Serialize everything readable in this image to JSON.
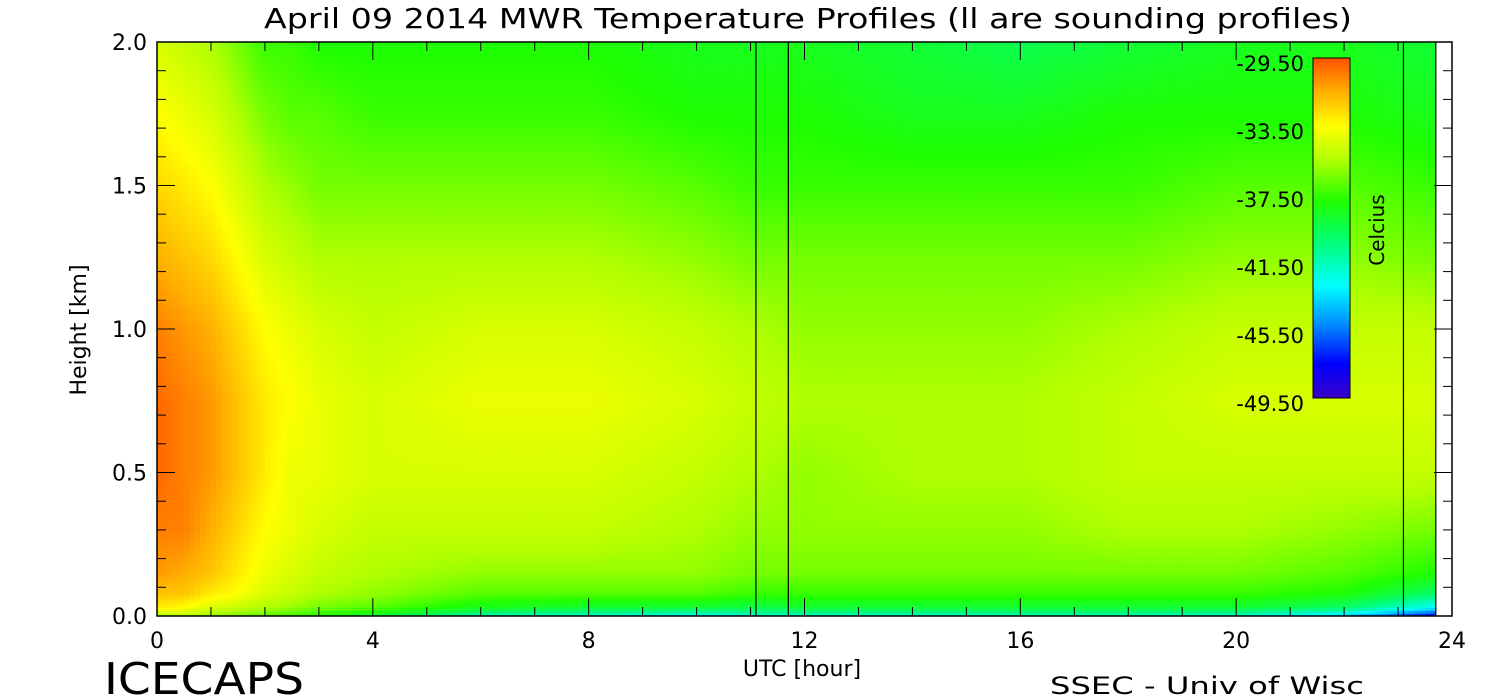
{
  "chart_data": {
    "type": "heatmap",
    "title": "April 09 2014 MWR Temperature Profiles (ll are sounding profiles)",
    "xlabel": "UTC [hour]",
    "ylabel": "Height [km]",
    "xlim": [
      0,
      24
    ],
    "ylim": [
      0,
      2.0
    ],
    "x_ticks": [
      "0",
      "4",
      "8",
      "12",
      "16",
      "20",
      "24"
    ],
    "y_ticks": [
      "0.0",
      "0.5",
      "1.0",
      "1.5",
      "2.0"
    ],
    "sounding_profiles_utc": [
      11.1,
      11.7,
      23.1
    ],
    "missing_data_from_utc": 23.7,
    "colorbar": {
      "label": "Celcius",
      "range": [
        -49.5,
        -29.5
      ],
      "ticks": [
        "-29.50",
        "-33.50",
        "-37.50",
        "-41.50",
        "-45.50",
        "-49.50"
      ]
    },
    "temperature_grid": {
      "x_hours": [
        0,
        0.5,
        1,
        1.5,
        2,
        2.5,
        3,
        4,
        6,
        8,
        10,
        11.1,
        12,
        14,
        16,
        18,
        20,
        22,
        23.7
      ],
      "heights_km": [
        0.0,
        0.03,
        0.08,
        0.15,
        0.3,
        0.5,
        0.75,
        1.0,
        1.25,
        1.5,
        1.75,
        2.0
      ],
      "values_celsius": [
        [
          -35.5,
          -35.5,
          -36.0,
          -36.5,
          -37.0,
          -37.5,
          -38.0,
          -39.0,
          -41.5,
          -42.0,
          -43.0,
          -42.0,
          -42.0,
          -42.0,
          -41.5,
          -41.5,
          -42.0,
          -44.0,
          -48.0
        ],
        [
          -33.0,
          -33.5,
          -34.5,
          -35.0,
          -35.5,
          -36.0,
          -36.5,
          -37.0,
          -38.5,
          -39.0,
          -39.0,
          -39.5,
          -39.0,
          -39.0,
          -39.0,
          -39.0,
          -39.0,
          -40.0,
          -43.0
        ],
        [
          -32.0,
          -32.0,
          -33.0,
          -33.5,
          -34.5,
          -35.0,
          -35.5,
          -36.0,
          -37.0,
          -37.0,
          -37.0,
          -37.5,
          -37.5,
          -37.5,
          -37.5,
          -37.5,
          -37.5,
          -38.0,
          -40.0
        ],
        [
          -31.0,
          -31.5,
          -32.0,
          -33.0,
          -34.0,
          -34.5,
          -35.0,
          -35.5,
          -36.0,
          -36.0,
          -36.0,
          -36.5,
          -36.5,
          -36.5,
          -36.5,
          -36.5,
          -36.5,
          -37.0,
          -38.0
        ],
        [
          -30.5,
          -30.5,
          -31.5,
          -32.5,
          -33.5,
          -34.0,
          -34.5,
          -35.0,
          -35.0,
          -35.0,
          -35.5,
          -36.0,
          -36.0,
          -36.0,
          -36.0,
          -35.5,
          -35.5,
          -36.0,
          -36.5
        ],
        [
          -30.0,
          -30.5,
          -31.0,
          -32.0,
          -33.0,
          -34.0,
          -34.0,
          -34.5,
          -34.5,
          -34.5,
          -35.0,
          -35.5,
          -36.0,
          -35.5,
          -35.5,
          -35.0,
          -35.0,
          -35.0,
          -35.0
        ],
        [
          -30.0,
          -30.5,
          -31.0,
          -32.0,
          -33.0,
          -33.5,
          -34.0,
          -34.5,
          -34.0,
          -34.0,
          -34.5,
          -35.0,
          -35.5,
          -35.5,
          -35.5,
          -35.0,
          -34.5,
          -34.5,
          -34.5
        ],
        [
          -30.5,
          -31.0,
          -31.5,
          -32.5,
          -33.5,
          -34.0,
          -34.5,
          -35.0,
          -34.5,
          -34.5,
          -35.0,
          -35.5,
          -36.0,
          -36.0,
          -36.0,
          -35.5,
          -35.0,
          -35.0,
          -35.0
        ],
        [
          -31.5,
          -32.0,
          -32.5,
          -33.5,
          -34.5,
          -35.0,
          -35.5,
          -35.5,
          -35.5,
          -35.5,
          -36.0,
          -36.5,
          -36.5,
          -36.5,
          -36.5,
          -36.5,
          -36.0,
          -36.0,
          -36.5
        ],
        [
          -32.5,
          -33.0,
          -33.5,
          -34.5,
          -35.5,
          -36.0,
          -36.5,
          -36.5,
          -36.5,
          -36.5,
          -37.0,
          -37.5,
          -37.5,
          -37.5,
          -37.5,
          -37.5,
          -37.0,
          -37.0,
          -37.5
        ],
        [
          -33.5,
          -34.0,
          -34.5,
          -35.5,
          -36.5,
          -37.0,
          -37.0,
          -37.5,
          -37.5,
          -37.5,
          -38.0,
          -38.0,
          -38.0,
          -38.5,
          -38.5,
          -38.0,
          -38.0,
          -38.0,
          -38.5
        ],
        [
          -34.5,
          -35.0,
          -35.5,
          -36.5,
          -37.5,
          -37.5,
          -38.0,
          -38.0,
          -38.0,
          -38.0,
          -38.5,
          -38.5,
          -38.5,
          -39.0,
          -39.5,
          -39.0,
          -38.5,
          -38.5,
          -39.0
        ]
      ]
    }
  },
  "footer": {
    "left": "ICECAPS",
    "right": "SSEC - Univ of Wisc"
  }
}
